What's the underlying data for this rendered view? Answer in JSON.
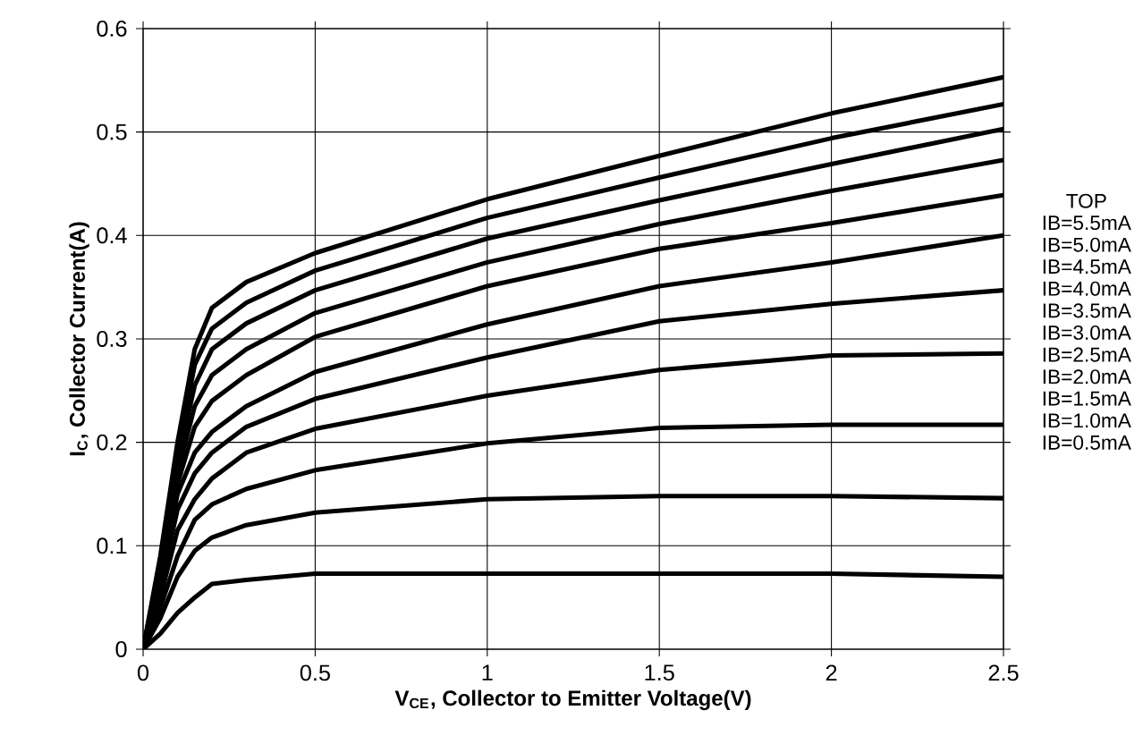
{
  "chart_data": {
    "type": "line",
    "xlabel": "V$_{CE}$, Collector to Emitter Voltage(V)",
    "ylabel": "I$_{C}$, Collector Current(A)",
    "legend_title": "TOP",
    "legend": "right",
    "grid": true,
    "line_style": "solid",
    "xlim": [
      0,
      2.5
    ],
    "ylim": [
      0,
      0.6
    ],
    "xticks": [
      0,
      0.5,
      1,
      1.5,
      2,
      2.5
    ],
    "yticks": [
      0,
      0.1,
      0.2,
      0.3,
      0.4,
      0.5,
      0.6
    ],
    "x": [
      0,
      0.05,
      0.1,
      0.15,
      0.2,
      0.3,
      0.5,
      1,
      1.5,
      2,
      2.5
    ],
    "series": [
      {
        "name": "IB=5.5mA",
        "color": "#000000",
        "values": [
          0,
          0.09,
          0.2,
          0.29,
          0.33,
          0.355,
          0.383,
          0.435,
          0.477,
          0.518,
          0.553
        ]
      },
      {
        "name": "IB=5.0mA",
        "color": "#000000",
        "values": [
          0,
          0.085,
          0.19,
          0.275,
          0.31,
          0.335,
          0.366,
          0.417,
          0.456,
          0.494,
          0.527
        ]
      },
      {
        "name": "IB=4.5mA",
        "color": "#000000",
        "values": [
          0,
          0.08,
          0.18,
          0.255,
          0.29,
          0.315,
          0.347,
          0.397,
          0.434,
          0.469,
          0.503
        ]
      },
      {
        "name": "IB=4.0mA",
        "color": "#000000",
        "values": [
          0,
          0.075,
          0.17,
          0.235,
          0.265,
          0.29,
          0.325,
          0.374,
          0.411,
          0.443,
          0.473
        ]
      },
      {
        "name": "IB=3.5mA",
        "color": "#000000",
        "values": [
          0,
          0.07,
          0.16,
          0.215,
          0.24,
          0.265,
          0.302,
          0.351,
          0.387,
          0.412,
          0.439
        ]
      },
      {
        "name": "IB=3.0mA",
        "color": "#000000",
        "values": [
          0,
          0.065,
          0.15,
          0.19,
          0.21,
          0.235,
          0.268,
          0.314,
          0.351,
          0.374,
          0.4
        ]
      },
      {
        "name": "IB=2.5mA",
        "color": "#000000",
        "values": [
          0,
          0.06,
          0.135,
          0.17,
          0.19,
          0.215,
          0.242,
          0.282,
          0.317,
          0.334,
          0.347
        ]
      },
      {
        "name": "IB=2.0mA",
        "color": "#000000",
        "values": [
          0,
          0.05,
          0.115,
          0.145,
          0.165,
          0.19,
          0.213,
          0.245,
          0.27,
          0.284,
          0.286
        ]
      },
      {
        "name": "IB=1.5mA",
        "color": "#000000",
        "values": [
          0,
          0.04,
          0.09,
          0.125,
          0.14,
          0.155,
          0.173,
          0.199,
          0.214,
          0.217,
          0.217
        ]
      },
      {
        "name": "IB=1.0mA",
        "color": "#000000",
        "values": [
          0,
          0.03,
          0.07,
          0.095,
          0.108,
          0.12,
          0.132,
          0.145,
          0.148,
          0.148,
          0.146
        ]
      },
      {
        "name": "IB=0.5mA",
        "color": "#000000",
        "values": [
          0,
          0.015,
          0.035,
          0.05,
          0.063,
          0.067,
          0.073,
          0.073,
          0.073,
          0.073,
          0.07
        ]
      }
    ]
  }
}
